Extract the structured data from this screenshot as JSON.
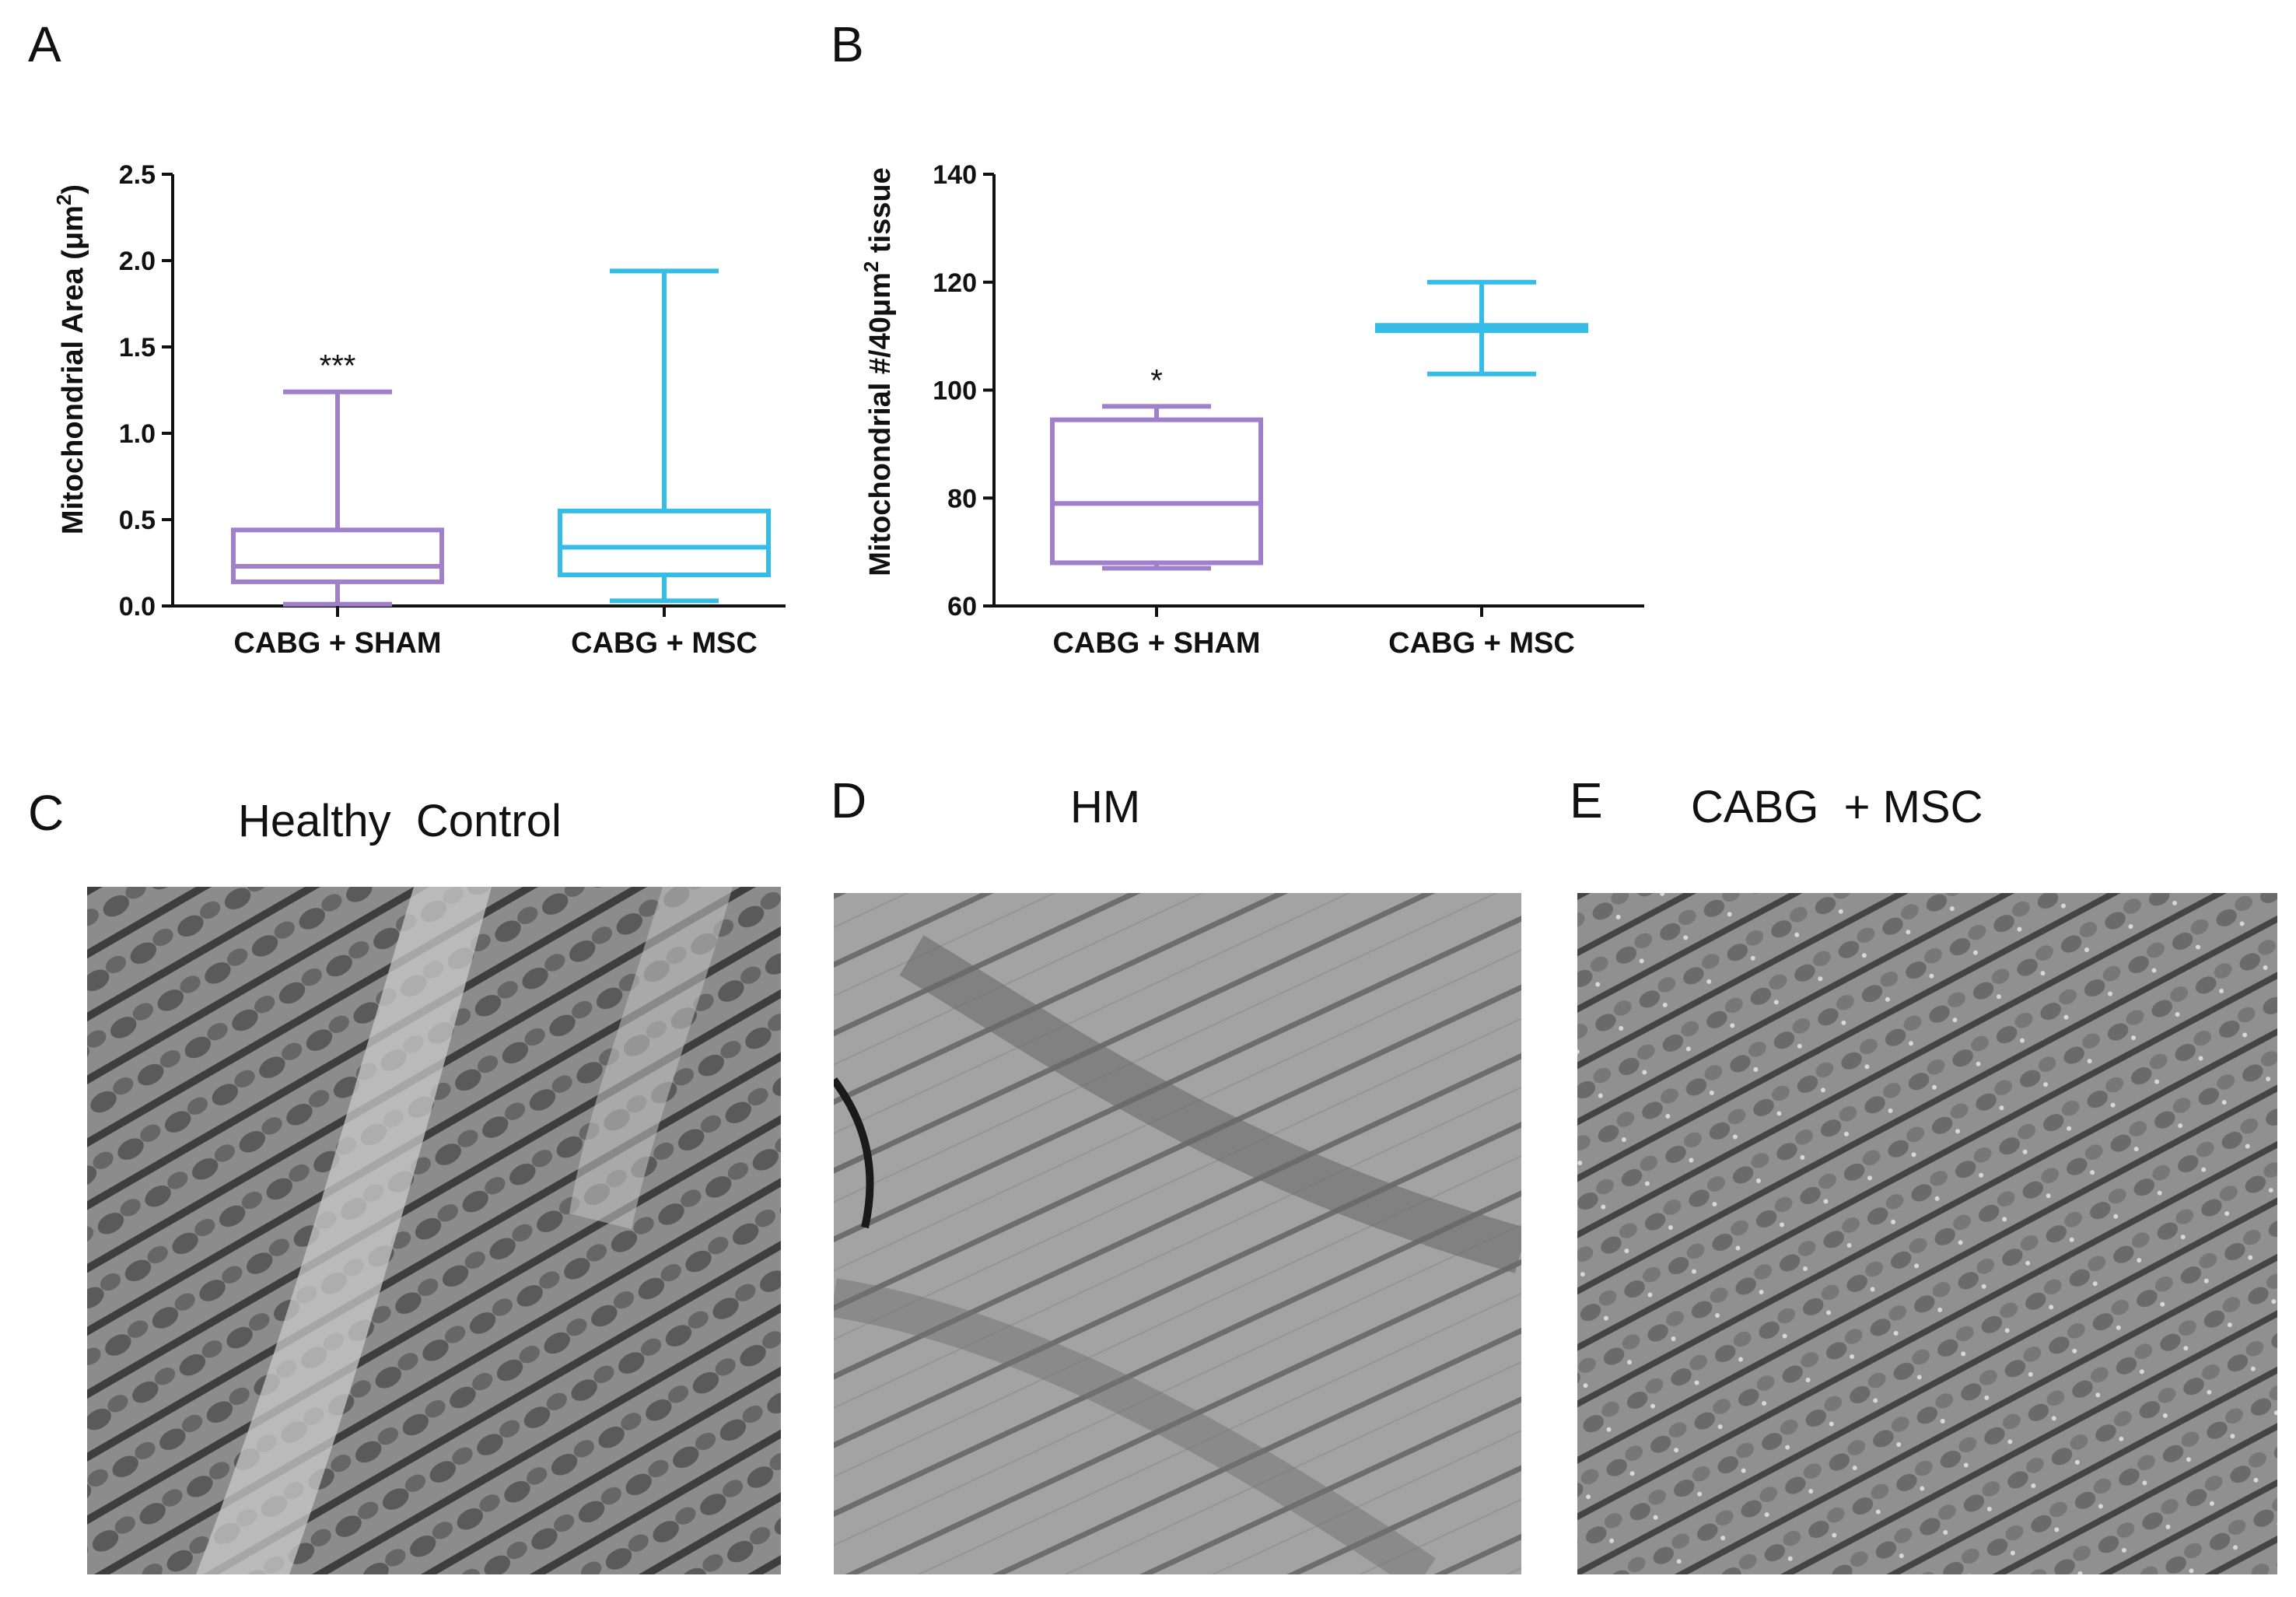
{
  "figure": {
    "panels": {
      "A": {
        "letter": "A"
      },
      "B": {
        "letter": "B"
      },
      "C": {
        "letter": "C",
        "title": "Healthy  Control"
      },
      "D": {
        "letter": "D",
        "title": "HM"
      },
      "E": {
        "letter": "E",
        "title": "CABG  + MSC"
      }
    }
  },
  "chart_data": [
    {
      "type": "boxplot",
      "panel": "A",
      "ylabel_main": "Mitochondrial  Area (",
      "ylabel_unit": "μm",
      "ylabel_sup": "2",
      "ylabel_end": ")",
      "ylim": [
        0.0,
        2.5
      ],
      "yticks": [
        "0.0",
        "0.5",
        "1.0",
        "1.5",
        "2.0",
        "2.5"
      ],
      "ytick_values": [
        0.0,
        0.5,
        1.0,
        1.5,
        2.0,
        2.5
      ],
      "categories": [
        "CABG + SHAM",
        "CABG + MSC"
      ],
      "series": [
        {
          "whisker_low": 0.01,
          "q1": 0.14,
          "median": 0.23,
          "q3": 0.44,
          "whisker_high": 1.24,
          "color": "#a07fcb",
          "annotation": "***"
        },
        {
          "whisker_low": 0.03,
          "q1": 0.18,
          "median": 0.34,
          "q3": 0.55,
          "whisker_high": 1.94,
          "color": "#35bde8",
          "annotation": ""
        }
      ]
    },
    {
      "type": "boxplot",
      "panel": "B",
      "ylabel_main": "Mitochondrial #/40",
      "ylabel_unit": "μm",
      "ylabel_sup": "2",
      "ylabel_end": " tissue",
      "ylim": [
        60,
        140
      ],
      "yticks": [
        "60",
        "80",
        "100",
        "120",
        "140"
      ],
      "ytick_values": [
        60,
        80,
        100,
        120,
        140
      ],
      "categories": [
        "CABG + SHAM",
        "CABG + MSC"
      ],
      "series": [
        {
          "whisker_low": 67,
          "q1": 68,
          "median": 79,
          "q3": 94.5,
          "whisker_high": 97,
          "color": "#a07fcb",
          "annotation": "*"
        },
        {
          "whisker_low": 103,
          "q1": 111,
          "median": 111.5,
          "q3": 112,
          "whisker_high": 120,
          "color": "#35bde8",
          "annotation": ""
        }
      ]
    }
  ]
}
